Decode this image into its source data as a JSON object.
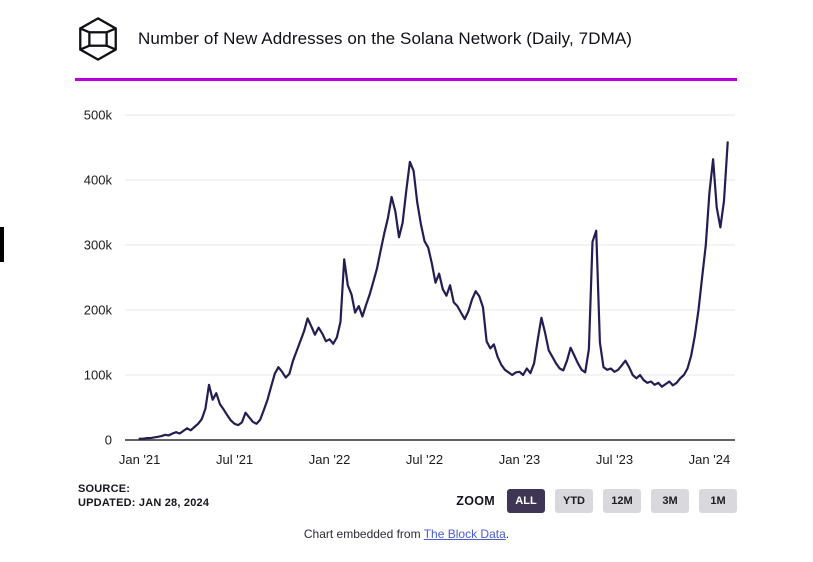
{
  "header": {
    "title": "Number of New Addresses on the Solana Network (Daily, 7DMA)",
    "logo": "the-block-logo"
  },
  "colors": {
    "accent_divider": "#b800dc",
    "chart_line": "#241d52",
    "grid_line": "#e7e7e9",
    "axis_line": "#2f2f2f",
    "axis_text": "#1c1c1c",
    "zoom_selected_bg": "#3f3655",
    "zoom_selected_text": "#ffffff",
    "zoom_bg": "#d9d8dd",
    "zoom_text": "#1c1b22",
    "link": "#4a5bd4"
  },
  "chart_data": {
    "type": "line",
    "title": "Number of New Addresses on the Solana Network (Daily, 7DMA)",
    "series_name": "New Solana addresses (daily, 7-day moving average)",
    "y_unit": "addresses per day",
    "x_unit": "weeks since Jan 1 2021",
    "grid": "horizontal",
    "legend": "none",
    "x_axis_range_weeks": [
      -4,
      163
    ],
    "ylim_k": [
      0,
      500
    ],
    "y_ticks": [
      {
        "value_k": 0,
        "label": "0"
      },
      {
        "value_k": 100,
        "label": "100k"
      },
      {
        "value_k": 200,
        "label": "200k"
      },
      {
        "value_k": 300,
        "label": "300k"
      },
      {
        "value_k": 400,
        "label": "400k"
      },
      {
        "value_k": 500,
        "label": "500k"
      }
    ],
    "x_ticks": [
      {
        "week": 0,
        "label": "Jan '21"
      },
      {
        "week": 26,
        "label": "Jul '21"
      },
      {
        "week": 52,
        "label": "Jan '22"
      },
      {
        "week": 78,
        "label": "Jul '22"
      },
      {
        "week": 104,
        "label": "Jan '23"
      },
      {
        "week": 130,
        "label": "Jul '23"
      },
      {
        "week": 156,
        "label": "Jan '24"
      }
    ],
    "values_k": [
      2,
      2,
      3,
      3,
      4,
      5,
      6,
      8,
      7,
      10,
      12,
      10,
      14,
      18,
      15,
      20,
      25,
      32,
      48,
      85,
      62,
      72,
      55,
      47,
      38,
      30,
      25,
      23,
      27,
      42,
      35,
      28,
      25,
      31,
      46,
      62,
      82,
      102,
      112,
      105,
      96,
      102,
      122,
      137,
      152,
      167,
      187,
      175,
      162,
      173,
      164,
      152,
      155,
      148,
      158,
      182,
      278,
      238,
      224,
      196,
      206,
      190,
      208,
      224,
      244,
      264,
      292,
      318,
      342,
      374,
      352,
      312,
      334,
      384,
      428,
      414,
      366,
      332,
      306,
      296,
      272,
      242,
      256,
      232,
      222,
      238,
      212,
      206,
      196,
      186,
      198,
      216,
      229,
      221,
      204,
      152,
      141,
      147,
      128,
      116,
      108,
      104,
      100,
      104,
      105,
      100,
      110,
      103,
      118,
      155,
      188,
      165,
      138,
      128,
      118,
      110,
      107,
      122,
      142,
      130,
      118,
      108,
      104,
      140,
      305,
      322,
      150,
      112,
      108,
      110,
      105,
      108,
      115,
      122,
      112,
      100,
      95,
      100,
      92,
      88,
      90,
      85,
      88,
      82,
      86,
      90,
      84,
      88,
      95,
      100,
      110,
      130,
      160,
      200,
      250,
      300,
      380,
      432,
      358,
      327,
      368,
      458
    ]
  },
  "footer": {
    "source_label": "SOURCE:",
    "updated_label": "UPDATED: JAN 28, 2024",
    "zoom_label": "ZOOM",
    "zoom_buttons": [
      "ALL",
      "YTD",
      "12M",
      "3M",
      "1M"
    ],
    "zoom_selected": "ALL",
    "embed_text_prefix": "Chart embedded from ",
    "embed_link_text": "The Block Data",
    "embed_text_suffix": "."
  }
}
